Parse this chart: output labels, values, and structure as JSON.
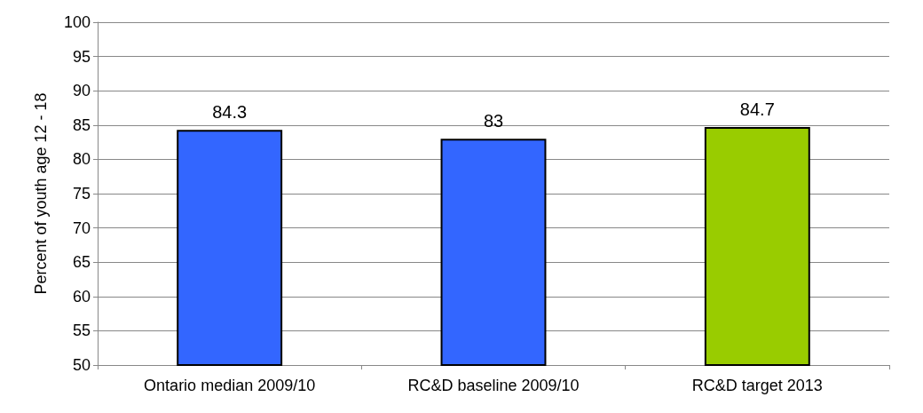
{
  "chart_data": {
    "type": "bar",
    "ylabel": "Percent of youth age 12 - 18",
    "categories": [
      "Ontario median 2009/10",
      "RC&D baseline 2009/10",
      "RC&D target 2013"
    ],
    "values": [
      84.3,
      83,
      84.7
    ],
    "colors": [
      "#3366ff",
      "#3366ff",
      "#99cc00"
    ],
    "ylim": [
      50,
      100
    ],
    "yticks": [
      50,
      55,
      60,
      65,
      70,
      75,
      80,
      85,
      90,
      95,
      100
    ],
    "grid": "y",
    "data_labels": true
  }
}
